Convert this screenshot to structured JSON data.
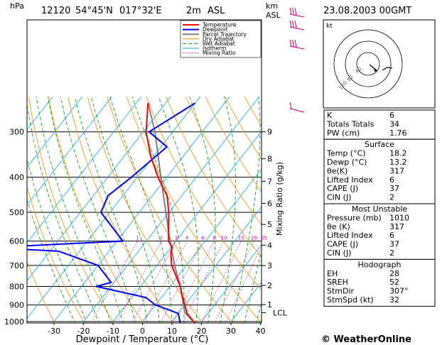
{
  "header": {
    "station": "12120",
    "lat": "54°45'N",
    "lon": "017°32'E",
    "elev": "2m",
    "asl": "ASL",
    "datetime": "23.08.2003 00GMT",
    "pressure_unit": "hPa",
    "km_label": "km",
    "km_asl": "ASL"
  },
  "legend": [
    "Temperature",
    "Dewpoint",
    "Parcel Trajectory",
    "Dry Adiabat",
    "Wet Adiabat",
    "Isotherm",
    "Mixing Ratio"
  ],
  "colors": {
    "temperature": "#ff0000",
    "dewpoint": "#0000ff",
    "parcel": "#808080",
    "dry_adiabat": "#ff8c00",
    "wet_adiabat": "#00a000",
    "isotherm": "#00aaff",
    "mixing_ratio": "#ff00aa",
    "wind": "#cc0066"
  },
  "chart_data": {
    "type": "skew-t",
    "xlabel": "Dewpoint / Temperature (°C)",
    "ylabel_right": "Mixing Ratio (g/kg)",
    "x_ticks": [
      -30,
      -20,
      -10,
      0,
      10,
      20,
      30,
      40
    ],
    "pressure_ticks": [
      300,
      400,
      500,
      600,
      700,
      800,
      900,
      1000
    ],
    "km_ticks": [
      {
        "label": "9",
        "p": 300
      },
      {
        "label": "8",
        "p": 356
      },
      {
        "label": "7",
        "p": 411
      },
      {
        "label": "6",
        "p": 472
      },
      {
        "label": "5",
        "p": 540
      },
      {
        "label": "4",
        "p": 616
      },
      {
        "label": "3",
        "p": 701
      },
      {
        "label": "2",
        "p": 795
      },
      {
        "label": "1",
        "p": 898
      }
    ],
    "lcl_label": "LCL",
    "lcl_pressure": 945,
    "mixing_ratio_labels": [
      "1",
      "2",
      "3",
      "4",
      "6",
      "8",
      "10",
      "15",
      "20",
      "25"
    ],
    "temperature": {
      "p": [
        1010,
        950,
        900,
        850,
        800,
        700,
        640,
        625,
        600,
        500,
        450,
        400,
        350,
        300,
        250
      ],
      "t": [
        18.2,
        13,
        10,
        6.7,
        3.5,
        -5,
        -9,
        -9.5,
        -12.5,
        -20,
        -25,
        -33,
        -41,
        -49,
        -56
      ]
    },
    "dewpoint": {
      "p": [
        1010,
        950,
        900,
        860,
        850,
        800,
        780,
        700,
        640,
        625,
        600,
        500,
        450,
        400,
        330,
        300,
        250
      ],
      "t": [
        13.2,
        10,
        0,
        -5,
        -8,
        -25,
        -21,
        -30,
        -47,
        -71,
        -28,
        -43,
        -45,
        -42,
        -38,
        -48,
        -40
      ]
    },
    "parcel": {
      "p": [
        1010,
        945,
        900,
        800,
        700,
        600,
        500,
        400,
        300,
        250
      ],
      "t": [
        18.2,
        12,
        9.5,
        3.5,
        -4,
        -12,
        -21,
        -32,
        -46,
        -56
      ]
    }
  },
  "indices": [
    {
      "label": "K",
      "value": "6"
    },
    {
      "label": "Totals Totals",
      "value": "34"
    },
    {
      "label": "PW (cm)",
      "value": "1.76"
    }
  ],
  "surface": {
    "title": "Surface",
    "rows": [
      {
        "label": "Temp (°C)",
        "value": "18.2"
      },
      {
        "label": "Dewp (°C)",
        "value": "13.2"
      },
      {
        "label": "θe(K)",
        "value": "317"
      },
      {
        "label": "Lifted Index",
        "value": "6"
      },
      {
        "label": "CAPE (J)",
        "value": "37"
      },
      {
        "label": "CIN (J)",
        "value": "2"
      }
    ]
  },
  "most_unstable": {
    "title": "Most Unstable",
    "rows": [
      {
        "label": "Pressure (mb)",
        "value": "1010"
      },
      {
        "label": "θe (K)",
        "value": "317"
      },
      {
        "label": "Lifted Index",
        "value": "6"
      },
      {
        "label": "CAPE (J)",
        "value": "37"
      },
      {
        "label": "CIN (J)",
        "value": "2"
      }
    ]
  },
  "hodograph": {
    "title": "Hodograph",
    "unit_label": "kt",
    "ring_labels": [
      "40",
      "80",
      "120"
    ],
    "rows": [
      {
        "label": "EH",
        "value": "28"
      },
      {
        "label": "SREH",
        "value": "52"
      },
      {
        "label": "StmDir",
        "value": "307°"
      },
      {
        "label": "StmSpd (kt)",
        "value": "32"
      }
    ]
  },
  "credit": "© WeatherOnline"
}
